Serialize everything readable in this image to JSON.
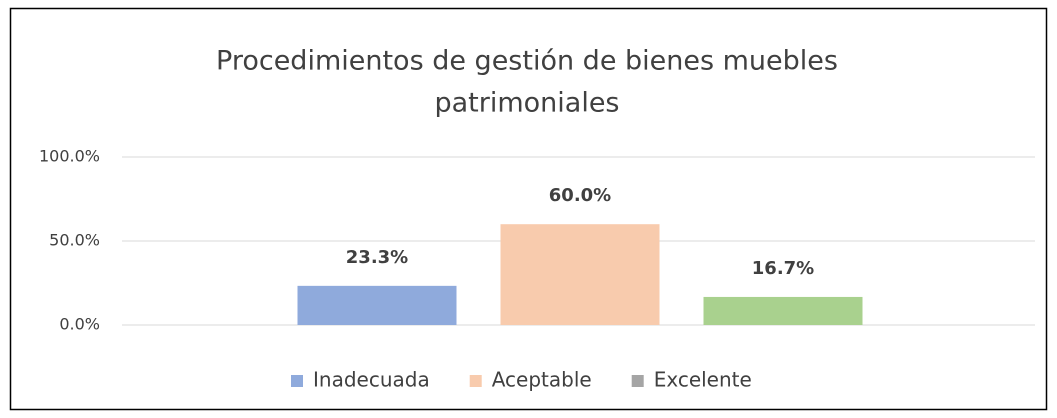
{
  "chart_data": {
    "type": "bar",
    "title": [
      "Procedimientos de gestión de bienes muebles",
      "patrimoniales"
    ],
    "series": [
      {
        "name": "Inadecuada",
        "color": "#8faadc",
        "legend_color": "#8faadc",
        "values": [
          23.3
        ],
        "value_labels": [
          "23.3%"
        ]
      },
      {
        "name": "Aceptable",
        "color": "#f8cbad",
        "legend_color": "#f8cbad",
        "values": [
          60.0
        ],
        "value_labels": [
          "60.0%"
        ]
      },
      {
        "name": "Excelente",
        "color": "#a9d18e",
        "legend_color": "#a5a5a5",
        "values": [
          16.7
        ],
        "value_labels": [
          "16.7%"
        ]
      }
    ],
    "ylim": [
      0,
      100
    ],
    "yticks": [
      {
        "value": 0,
        "label": "0.0%"
      },
      {
        "value": 50,
        "label": "50.0%"
      },
      {
        "value": 100,
        "label": "100.0%"
      }
    ],
    "grid": true,
    "legend": "bottom"
  }
}
